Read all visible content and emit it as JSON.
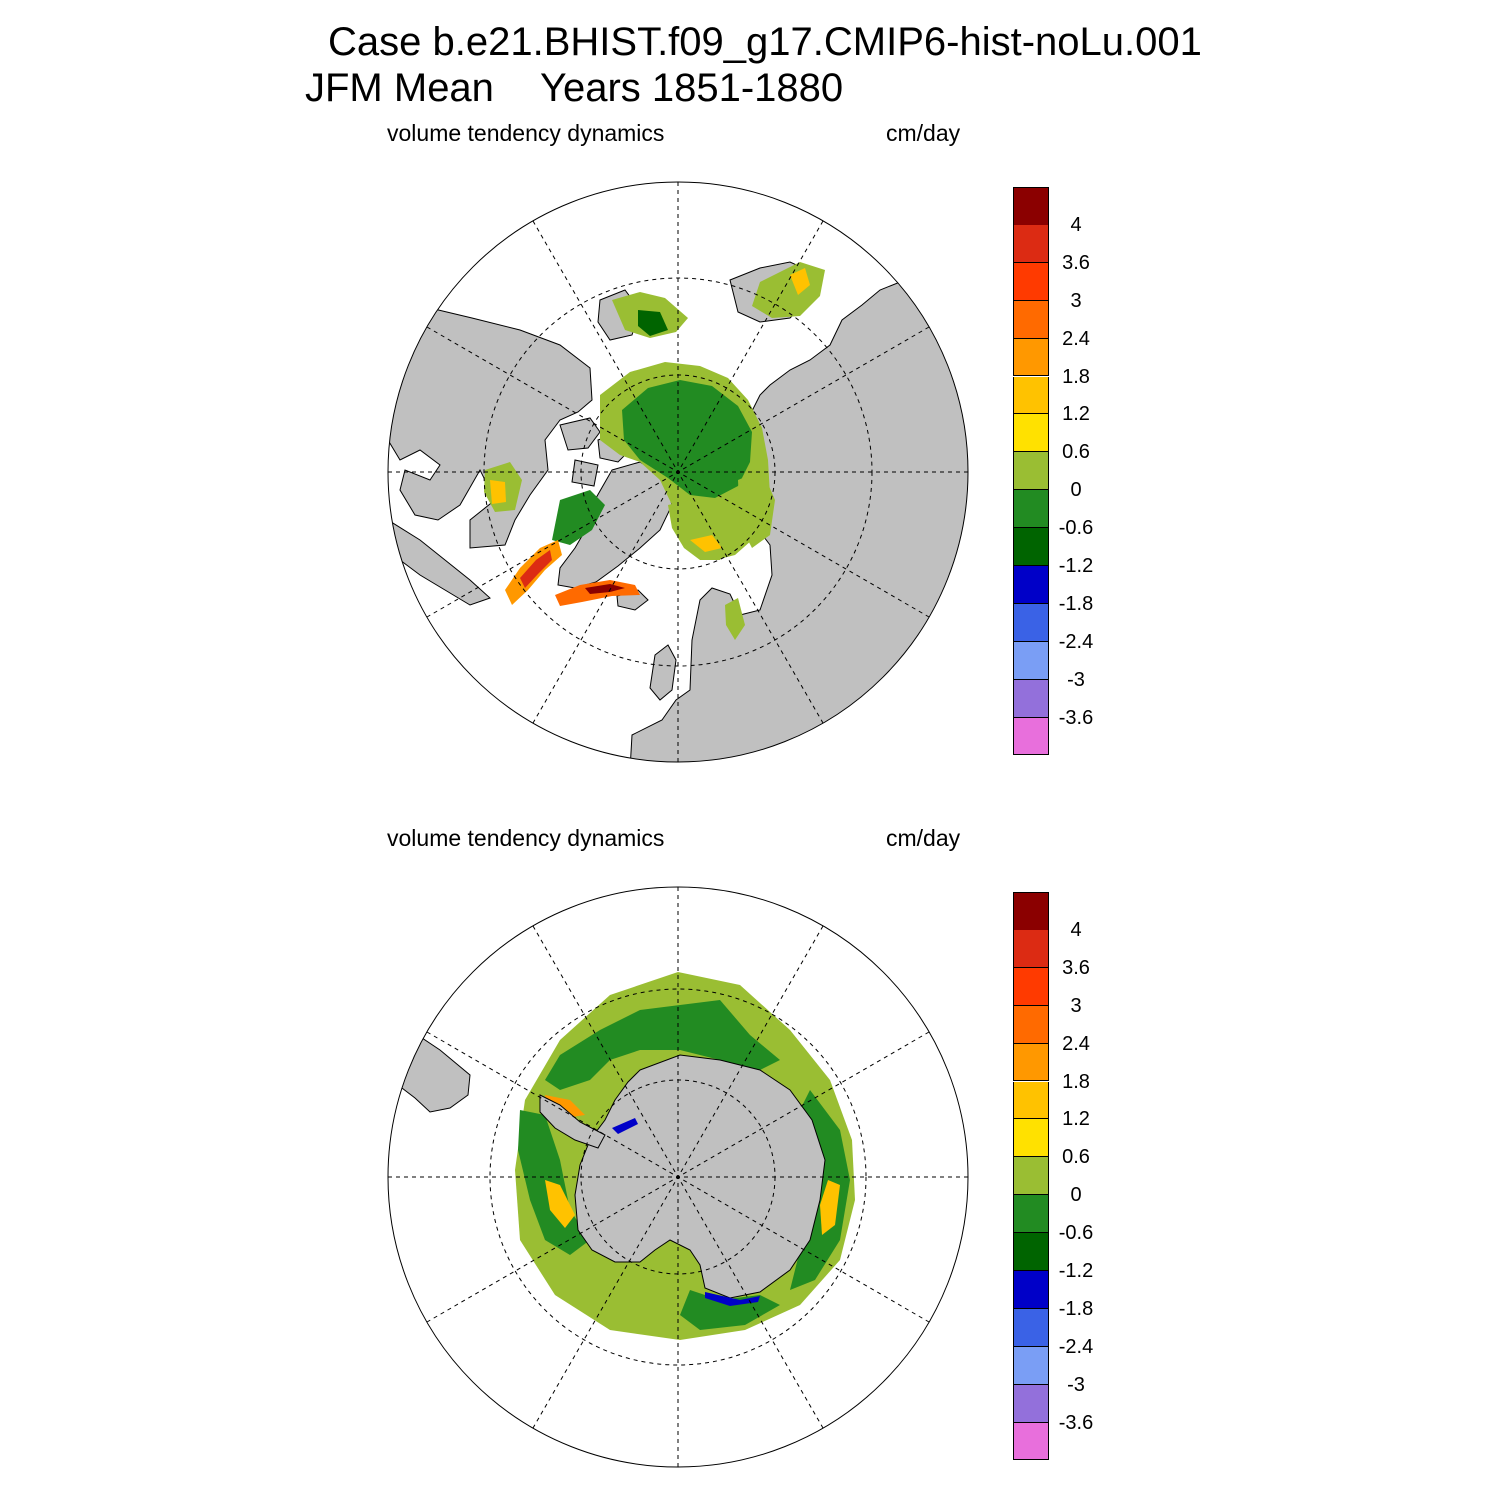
{
  "title": {
    "case_line": "Case b.e21.BHIST.f09_g17.CMIP6-hist-noLu.001",
    "season": "JFM Mean",
    "years": "Years 1851-1880"
  },
  "panels": [
    {
      "id": "north",
      "variable_label": "volume tendency dynamics",
      "units_label": "cm/day",
      "hemisphere": "Northern Hemisphere polar stereographic"
    },
    {
      "id": "south",
      "variable_label": "volume tendency dynamics",
      "units_label": "cm/day",
      "hemisphere": "Southern Hemisphere polar stereographic"
    }
  ],
  "colorbar": {
    "levels": [
      "4",
      "3.6",
      "3",
      "2.4",
      "1.8",
      "1.2",
      "0.6",
      "0",
      "-0.6",
      "-1.2",
      "-1.8",
      "-2.4",
      "-3",
      "-3.6"
    ],
    "colors": [
      "#8b0000",
      "#dc2b13",
      "#ff3a00",
      "#ff6a00",
      "#ff9800",
      "#ffc200",
      "#ffe100",
      "#9abe33",
      "#228b22",
      "#006400",
      "#0000c8",
      "#3a62e6",
      "#7a9ef5",
      "#9370db",
      "#e86fdc"
    ]
  },
  "map_colors": {
    "land": "#c0c0c0",
    "ocean_no_ice": "#ffffff",
    "grid": "#000000"
  }
}
